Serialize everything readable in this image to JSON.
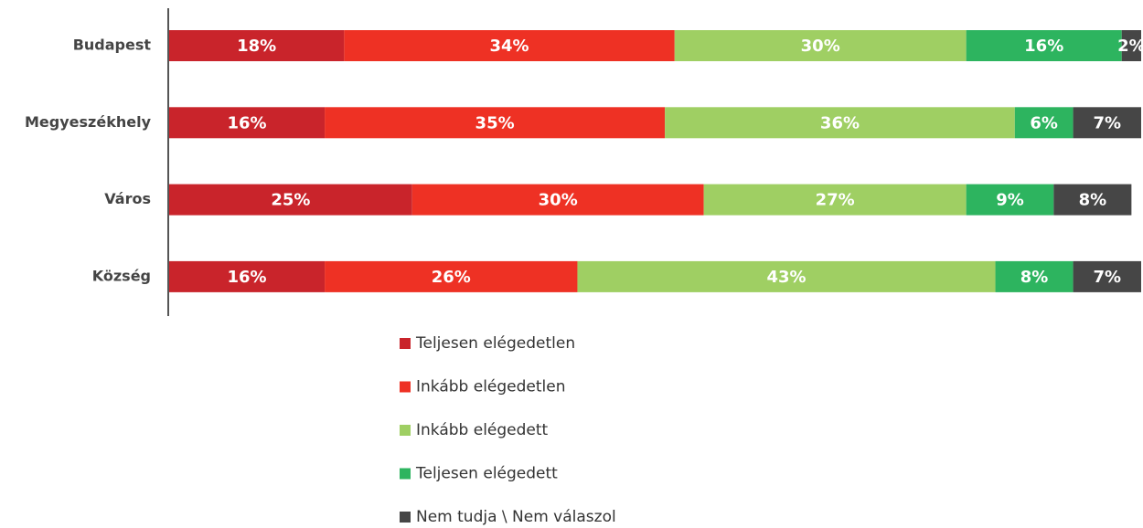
{
  "chart_data": {
    "type": "stacked-bar-horizontal",
    "categories": [
      "Budapest",
      "Megyeszékhely",
      "Város",
      "Község"
    ],
    "xlim": [
      0,
      100
    ],
    "series": [
      {
        "name": "Teljesen elégedetlen",
        "color": "#c9242b",
        "values": [
          18,
          16,
          25,
          16
        ],
        "value_labels": [
          "18%",
          "16%",
          "25%",
          "16%"
        ]
      },
      {
        "name": "Inkább elégedetlen",
        "color": "#ee3124",
        "values": [
          34,
          35,
          30,
          26
        ],
        "value_labels": [
          "34%",
          "35%",
          "30%",
          "26%"
        ]
      },
      {
        "name": "Inkább elégedett",
        "color": "#9fcf63",
        "values": [
          30,
          36,
          27,
          43
        ],
        "value_labels": [
          "30%",
          "36%",
          "27%",
          "43%"
        ]
      },
      {
        "name": "Teljesen elégedett",
        "color": "#2db45f",
        "values": [
          16,
          6,
          9,
          8
        ],
        "value_labels": [
          "16%",
          "6%",
          "9%",
          "8%"
        ]
      },
      {
        "name": "Nem tudja \\ Nem válaszol",
        "color": "#464646",
        "values": [
          2,
          7,
          8,
          7
        ],
        "value_labels": [
          "2%",
          "7%",
          "8%",
          "7%"
        ]
      }
    ]
  }
}
